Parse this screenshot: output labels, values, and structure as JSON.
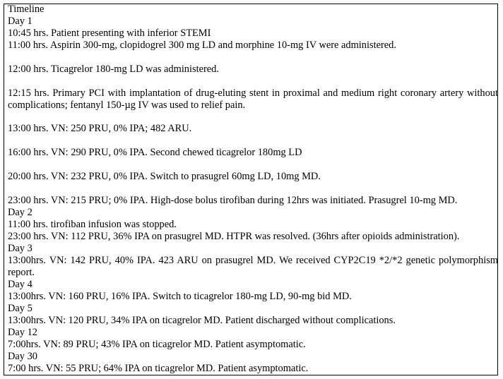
{
  "title": "Timeline",
  "lines": [
    "Day 1",
    "10:45 hrs. Patient presenting with inferior STEMI",
    "11:00 hrs. Aspirin 300-mg, clopidogrel 300 mg LD and morphine 10-mg IV were administered.",
    "",
    "12:00 hrs. Ticagrelor 180-mg LD was administered.",
    "",
    "12:15 hrs. Primary PCI with implantation of drug-eluting stent in proximal and medium right coronary artery without complications; fentanyl 150-µg IV was used to relief pain.",
    "",
    "13:00 hrs. VN: 250 PRU, 0% IPA; 482 ARU.",
    "",
    "16:00 hrs. VN: 290 PRU, 0% IPA. Second chewed ticagrelor 180mg LD",
    "",
    "20:00 hrs. VN: 232 PRU, 0% IPA. Switch to prasugrel 60mg LD, 10mg MD.",
    "",
    "23:00 hrs. VN: 215 PRU; 0% IPA. High-dose bolus tirofiban during 12hrs was initiated. Prasugrel 10-mg MD.",
    "Day 2",
    "11:00 hrs. tirofiban infusion was stopped.",
    "23:00 hrs. VN: 112 PRU, 36% IPA on prasugrel MD. HTPR was resolved. (36hrs after opioids administration).",
    "Day 3",
    "13:00hrs. VN: 142 PRU, 40% IPA. 423 ARU on prasugrel MD. We received CYP2C19 *2/*2 genetic polymorphism report.",
    "Day 4",
    "13:00hrs. VN: 160 PRU, 16% IPA. Switch to ticagrelor 180-mg LD, 90-mg bid MD.",
    "Day 5",
    "13:00hrs. VN: 120 PRU, 34% IPA on ticagrelor MD. Patient discharged without complications.",
    "Day 12",
    "7:00hrs. VN: 89 PRU; 43% IPA on ticagrelor MD. Patient asymptomatic.",
    "Day 30",
    "7:00 hrs. VN: 55 PRU; 64% IPA on ticagrelor MD. Patient asymptomatic."
  ]
}
